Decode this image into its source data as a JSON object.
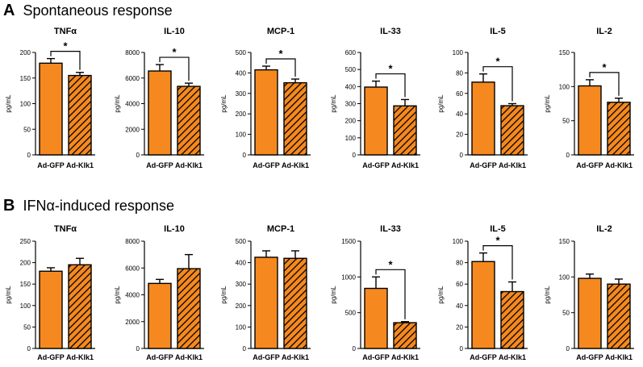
{
  "panels": [
    {
      "letter": "A",
      "title": "Spontaneous response",
      "charts": [
        {
          "type": "bar",
          "title": "TNFα",
          "ylabel": "pg/mL",
          "categories": [
            "Ad-GFP",
            "Ad-Klk1"
          ],
          "values": [
            179,
            155
          ],
          "errors": [
            9,
            6
          ],
          "ylim": [
            0,
            200
          ],
          "yticks": [
            0,
            50,
            100,
            150,
            200
          ],
          "significance": "*"
        },
        {
          "type": "bar",
          "title": "IL-10",
          "ylabel": "pg/mL",
          "categories": [
            "Ad-GFP",
            "Ad-Klk1"
          ],
          "values": [
            6550,
            5350
          ],
          "errors": [
            500,
            250
          ],
          "ylim": [
            0,
            8000
          ],
          "yticks": [
            0,
            2000,
            4000,
            6000,
            8000
          ],
          "significance": "*"
        },
        {
          "type": "bar",
          "title": "MCP-1",
          "ylabel": "pg/mL",
          "categories": [
            "Ad-GFP",
            "Ad-Klk1"
          ],
          "values": [
            415,
            352
          ],
          "errors": [
            18,
            18
          ],
          "ylim": [
            0,
            500
          ],
          "yticks": [
            0,
            100,
            200,
            300,
            400,
            500
          ],
          "significance": "*"
        },
        {
          "type": "bar",
          "title": "IL-33",
          "ylabel": "pg/mL",
          "categories": [
            "Ad-GFP",
            "Ad-Klk1"
          ],
          "values": [
            397,
            287
          ],
          "errors": [
            35,
            37
          ],
          "ylim": [
            0,
            600
          ],
          "yticks": [
            0,
            100,
            200,
            300,
            400,
            500,
            600
          ],
          "significance": "*"
        },
        {
          "type": "bar",
          "title": "IL-5",
          "ylabel": "pg/mL",
          "categories": [
            "Ad-GFP",
            "Ad-Klk1"
          ],
          "values": [
            71,
            48
          ],
          "errors": [
            8,
            2
          ],
          "ylim": [
            0,
            100
          ],
          "yticks": [
            0,
            20,
            40,
            60,
            80,
            100
          ],
          "significance": "*"
        },
        {
          "type": "bar",
          "title": "IL-2",
          "ylabel": "pg/mL",
          "categories": [
            "Ad-GFP",
            "Ad-Klk1"
          ],
          "values": [
            101,
            77
          ],
          "errors": [
            9,
            6
          ],
          "ylim": [
            0,
            150
          ],
          "yticks": [
            0,
            50,
            100,
            150
          ],
          "significance": "*"
        }
      ]
    },
    {
      "letter": "B",
      "title": "IFNα-induced response",
      "charts": [
        {
          "type": "bar",
          "title": "TNFα",
          "ylabel": "pg/mL",
          "categories": [
            "Ad-GFP",
            "Ad-Klk1"
          ],
          "values": [
            180,
            195
          ],
          "errors": [
            8,
            15
          ],
          "ylim": [
            0,
            250
          ],
          "yticks": [
            0,
            50,
            100,
            150,
            200,
            250
          ],
          "significance": ""
        },
        {
          "type": "bar",
          "title": "IL-10",
          "ylabel": "pg/mL",
          "categories": [
            "Ad-GFP",
            "Ad-Klk1"
          ],
          "values": [
            4850,
            5950
          ],
          "errors": [
            300,
            1050
          ],
          "ylim": [
            0,
            8000
          ],
          "yticks": [
            0,
            2000,
            4000,
            6000,
            8000
          ],
          "significance": ""
        },
        {
          "type": "bar",
          "title": "MCP-1",
          "ylabel": "pg/mL",
          "categories": [
            "Ad-GFP",
            "Ad-Klk1"
          ],
          "values": [
            425,
            420
          ],
          "errors": [
            30,
            35
          ],
          "ylim": [
            0,
            500
          ],
          "yticks": [
            0,
            100,
            200,
            300,
            400,
            500
          ],
          "significance": ""
        },
        {
          "type": "bar",
          "title": "IL-33",
          "ylabel": "pg/mL",
          "categories": [
            "Ad-GFP",
            "Ad-Klk1"
          ],
          "values": [
            840,
            360
          ],
          "errors": [
            160,
            15
          ],
          "ylim": [
            0,
            1500
          ],
          "yticks": [
            0,
            500,
            1000,
            1500
          ],
          "significance": "*"
        },
        {
          "type": "bar",
          "title": "IL-5",
          "ylabel": "pg/mL",
          "categories": [
            "Ad-GFP",
            "Ad-Klk1"
          ],
          "values": [
            81,
            53
          ],
          "errors": [
            8,
            9
          ],
          "ylim": [
            0,
            100
          ],
          "yticks": [
            0,
            20,
            40,
            60,
            80,
            100
          ],
          "significance": "*"
        },
        {
          "type": "bar",
          "title": "IL-2",
          "ylabel": "pg/mL",
          "categories": [
            "Ad-GFP",
            "Ad-Klk1"
          ],
          "values": [
            98,
            90
          ],
          "errors": [
            6,
            7
          ],
          "ylim": [
            0,
            150
          ],
          "yticks": [
            0,
            50,
            100,
            150
          ],
          "significance": ""
        }
      ]
    }
  ],
  "colors": {
    "bar": "#f5891f",
    "stroke": "#000000",
    "hatch": "#000000"
  }
}
